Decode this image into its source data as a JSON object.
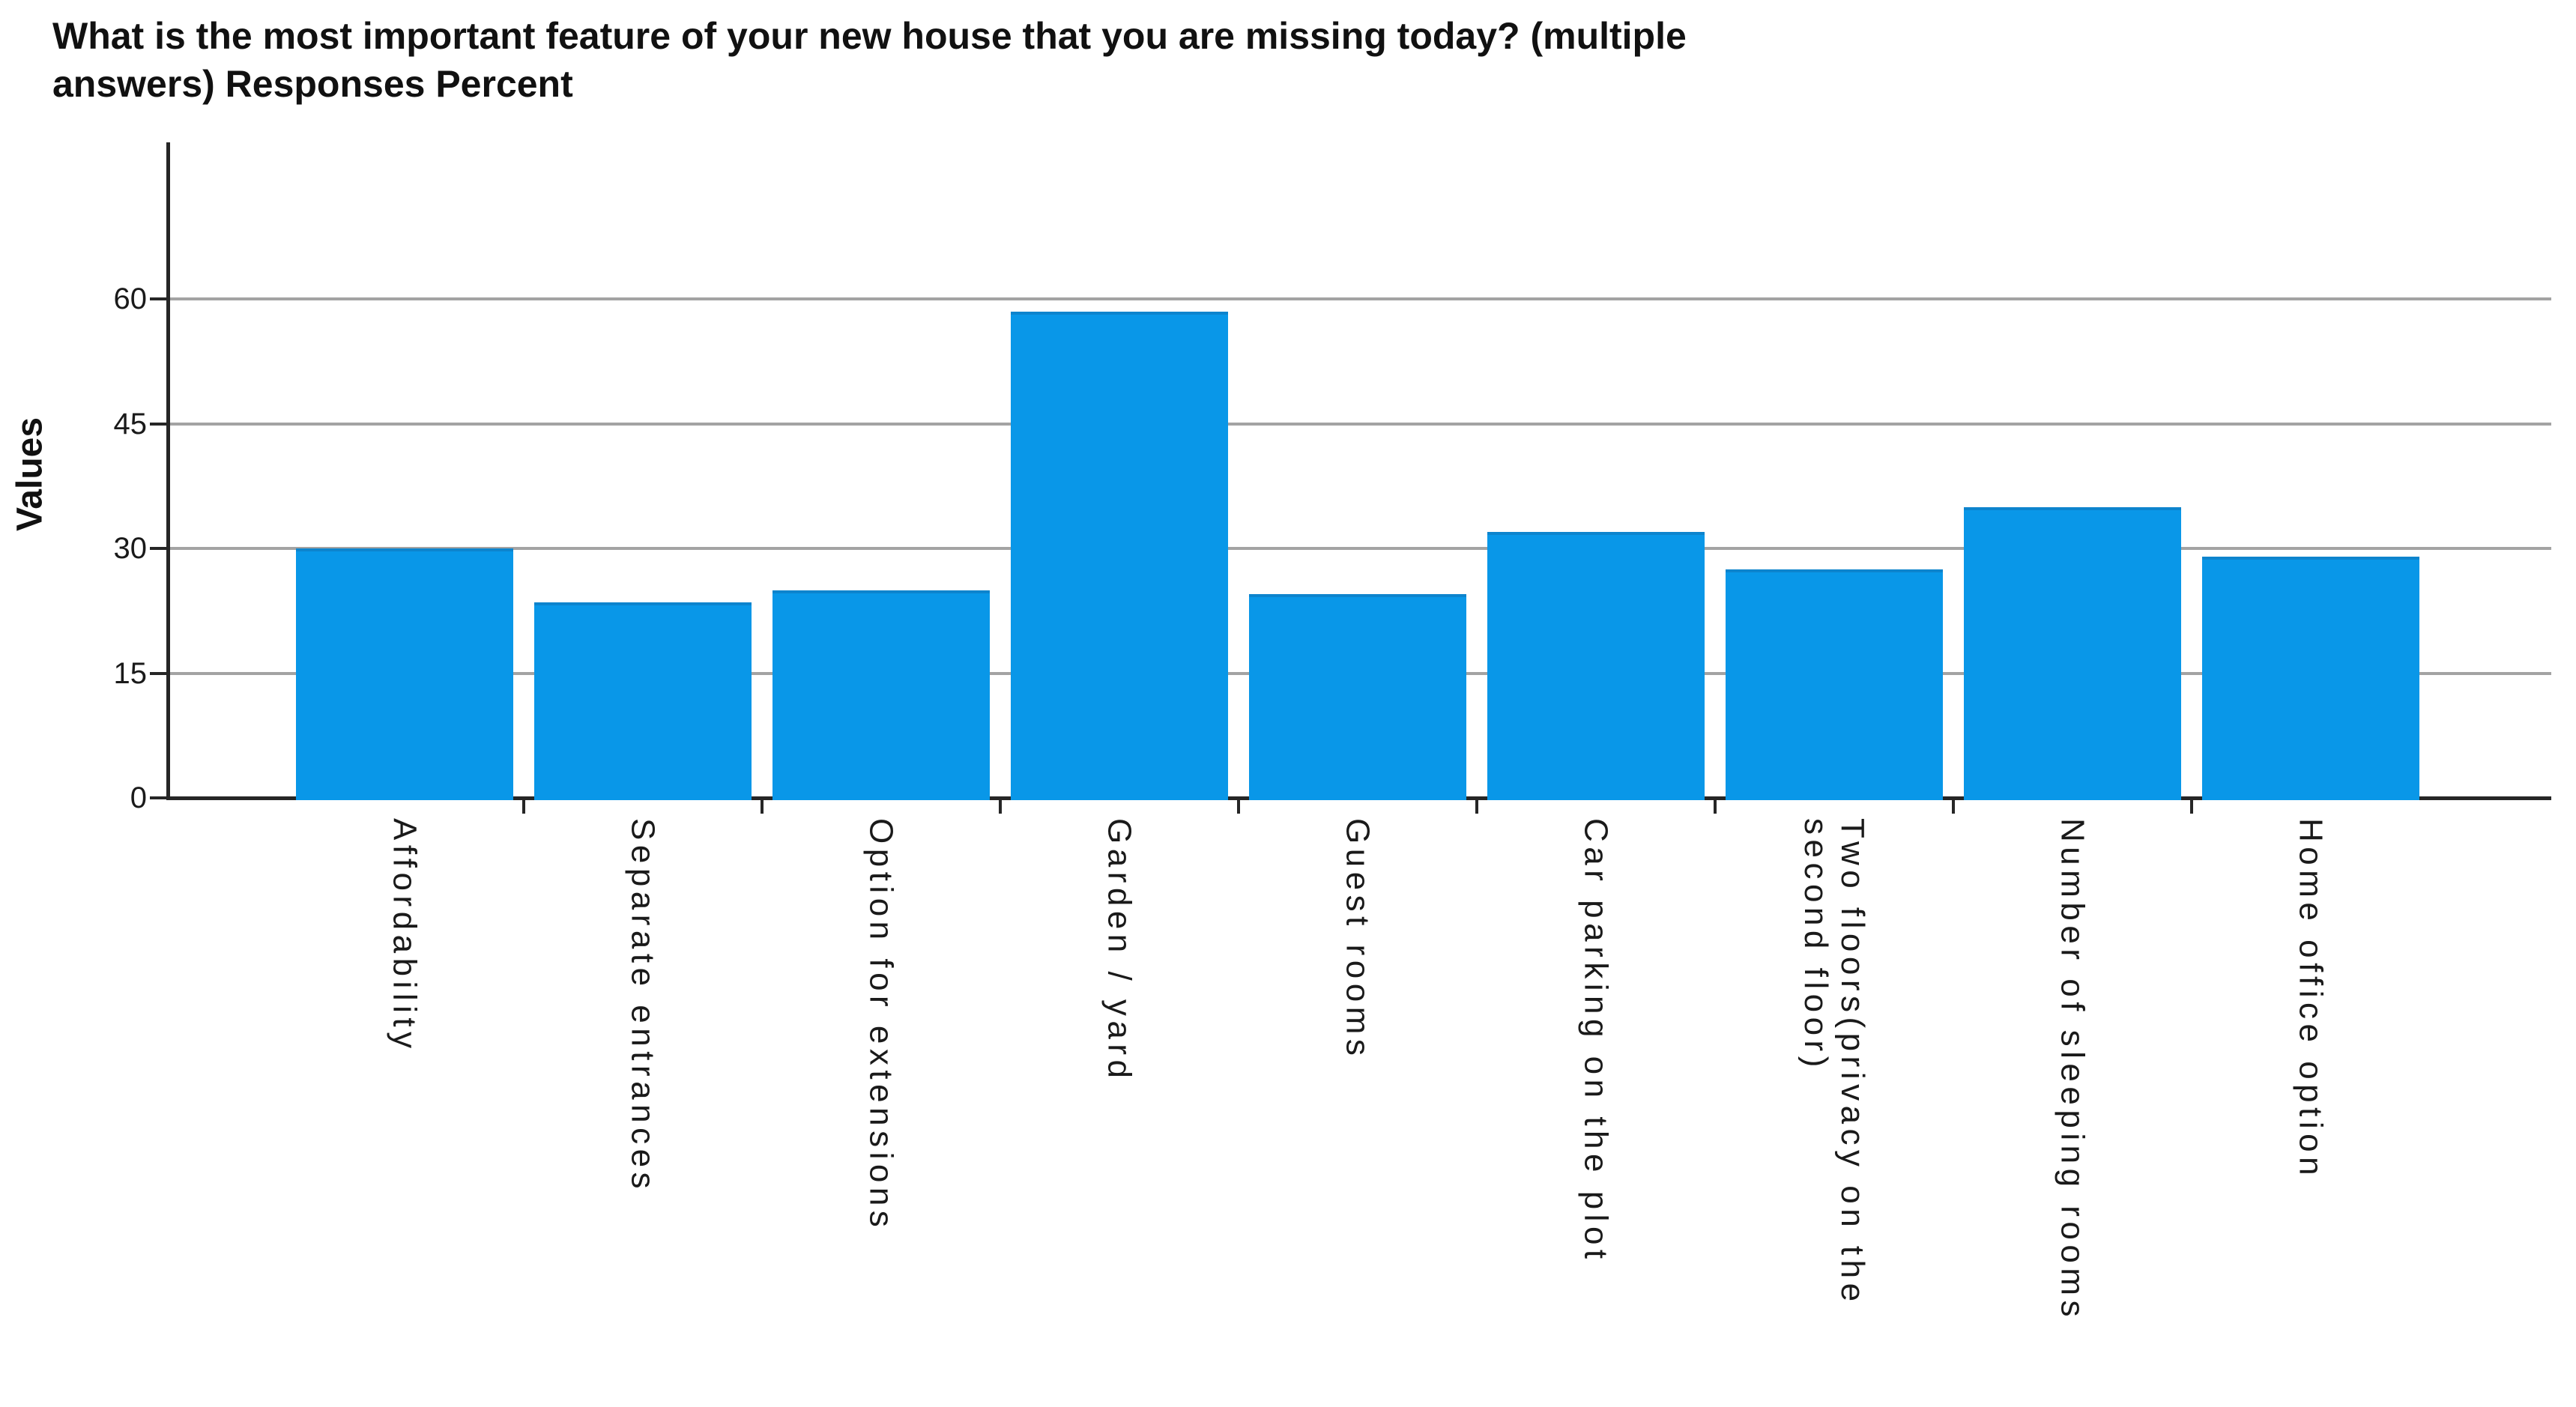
{
  "title": {
    "full": "What is the most important feature of your new house that you are missing today? (multiple answers) Responses Percent",
    "line1": "What is the most important feature of your new house that you are missing today? (multiple",
    "line2": "answers) Responses Percent"
  },
  "y_axis": {
    "label": "Values"
  },
  "chart_data": {
    "type": "bar",
    "title": "What is the most important feature of your new house that you are missing today? (multiple answers) Responses Percent",
    "categories": [
      "Affordability",
      "Separate entrances",
      "Option for extensions",
      "Garden / yard",
      "Guest rooms",
      "Car parking on the plot",
      "Two floors(privacy on the\nsecond floor)",
      "Number of sleeping rooms",
      "Home office option"
    ],
    "values": [
      30,
      23.5,
      25,
      58.5,
      24.5,
      32,
      27.5,
      35,
      29
    ],
    "xlabel": "",
    "ylabel": "Values",
    "ylim": [
      0,
      75
    ],
    "yticks": [
      0,
      15,
      30,
      45,
      60
    ],
    "grid": "horizontal-gray-lines",
    "legend": "none",
    "x_label_rotation_deg": 90
  },
  "colors": {
    "bar": "#0997E8",
    "bar_top_edge": "#0d84cd",
    "gridline": "#a3a3a3",
    "axis": "#262626",
    "text": "#1a1a1a",
    "background": "#ffffff"
  }
}
